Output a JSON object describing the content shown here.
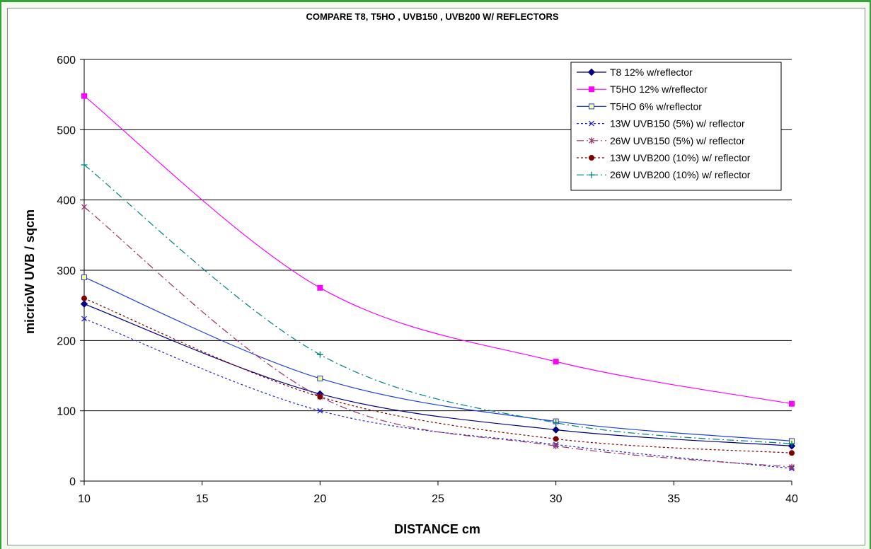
{
  "chart_data": {
    "type": "line",
    "title": "COMPARE T8, T5HO , UVB150 , UVB200 W/ REFLECTORS",
    "xlabel": "DISTANCE cm",
    "ylabel": "micrioW UVB / sqcm",
    "xlim": [
      10,
      40
    ],
    "ylim": [
      0,
      600
    ],
    "x_ticks": [
      10,
      15,
      20,
      25,
      30,
      35,
      40
    ],
    "y_ticks": [
      0,
      100,
      200,
      300,
      400,
      500,
      600
    ],
    "grid": "horizontal",
    "legend_position": "top-right",
    "x": [
      10,
      20,
      30,
      40
    ],
    "series": [
      {
        "name": "T8 12% w/reflector",
        "values": [
          252,
          124,
          73,
          50
        ],
        "color": "#000080",
        "dash": "solid",
        "marker": "diamond",
        "marker_fill": "#000080"
      },
      {
        "name": "T5HO 12% w/reflector",
        "values": [
          548,
          275,
          170,
          110
        ],
        "color": "#ff00ff",
        "dash": "solid",
        "marker": "square",
        "marker_fill": "#ff00ff"
      },
      {
        "name": "T5HO 6% w/reflector",
        "values": [
          290,
          146,
          85,
          57
        ],
        "color": "#1f3fdf",
        "dash": "solid",
        "marker": "square",
        "marker_fill": "#ffff99"
      },
      {
        "name": "13W UVB150 (5%) w/ reflector",
        "values": [
          231,
          100,
          52,
          18
        ],
        "color": "#2222dd",
        "dash": "dot",
        "marker": "x",
        "marker_fill": "#2222dd"
      },
      {
        "name": "26W UVB150 (5%) w/ reflector",
        "values": [
          390,
          120,
          50,
          20
        ],
        "color": "#993366",
        "dash": "dashdot",
        "marker": "star",
        "marker_fill": "#993366"
      },
      {
        "name": "13W UVB200 (10%) w/ reflector",
        "values": [
          260,
          120,
          60,
          40
        ],
        "color": "#800000",
        "dash": "dot",
        "marker": "circle",
        "marker_fill": "#800000"
      },
      {
        "name": "26W UVB200 (10%) w/ reflector",
        "values": [
          450,
          180,
          83,
          53
        ],
        "color": "#008080",
        "dash": "dashdot",
        "marker": "plus",
        "marker_fill": "#008080"
      }
    ]
  }
}
